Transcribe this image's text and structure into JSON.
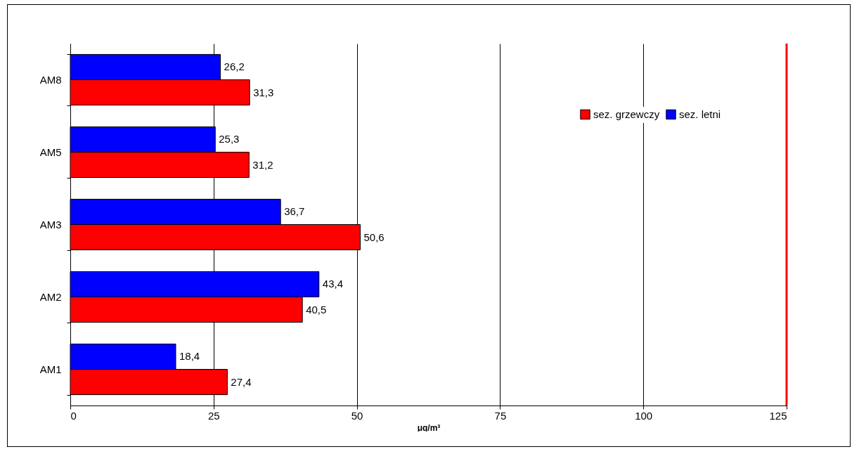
{
  "chart_data": {
    "type": "bar",
    "orientation": "horizontal",
    "xlabel": "μg/m³",
    "categories": [
      "AM8",
      "AM5",
      "AM3",
      "AM2",
      "AM1"
    ],
    "series": [
      {
        "name": "sez. grzewczy",
        "color": "#ff0000",
        "values": [
          31.3,
          31.2,
          50.6,
          40.5,
          27.4
        ],
        "value_labels": [
          "31,3",
          "31,2",
          "50,6",
          "40,5",
          "27,4"
        ]
      },
      {
        "name": "sez. letni",
        "color": "#0000ff",
        "values": [
          26.2,
          25.3,
          36.7,
          43.4,
          18.4
        ],
        "value_labels": [
          "26,2",
          "25,3",
          "36,7",
          "43,4",
          "18,4"
        ]
      }
    ],
    "xlim": [
      0,
      125
    ],
    "xticks": [
      0,
      25,
      50,
      75,
      100,
      125
    ],
    "grid": "x",
    "legend": "top right",
    "ref_lines": [
      {
        "axis": "x",
        "value": 125,
        "color": "#ff0000"
      }
    ]
  }
}
